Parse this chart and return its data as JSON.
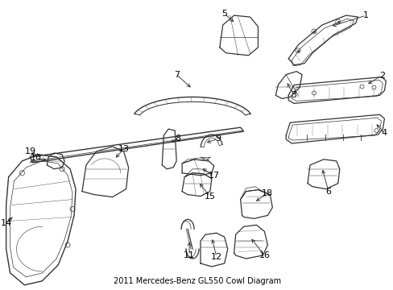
{
  "title": "2011 Mercedes-Benz GL550 Cowl Diagram",
  "background_color": "#ffffff",
  "fig_width": 4.89,
  "fig_height": 3.6,
  "dpi": 100,
  "text_color": "#000000",
  "line_color": "#333333",
  "fontsize": 8,
  "title_fontsize": 7
}
